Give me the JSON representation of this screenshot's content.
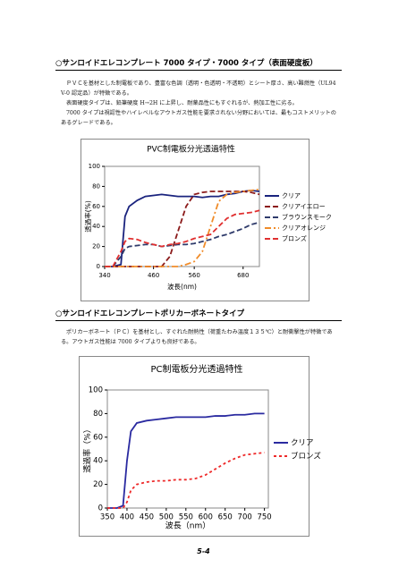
{
  "sections": [
    {
      "heading": "○サンロイドエレコンプレート 7000 タイプ・7000 タイプ（表面硬度板）",
      "paragraphs": [
        "ＰＶＣを基材とした制電板であり、豊富な色調（透明・色透明・不透明）とシート厚さ、高い難燃性（UL94 V-0 認定品）が特徴である。",
        "表面硬度タイプは、鉛筆硬度 H→2H に上昇し、耐薬品性にもすぐれるが、熱加工性に劣る。",
        "7000 タイプは視認性やハイレベルなアウトガス性能を要求されない分野においては、最もコストメリットのあるグレードである。"
      ]
    },
    {
      "heading": "○サンロイドエレコンプレートポリカーボネートタイプ",
      "paragraphs": [
        "ポリカーボネート（ＰＣ）を基材とし、すぐれた耐熱性（荷重たわみ温度１３５℃）と耐衝撃性が特徴である。アウトガス性能は 7000 タイプよりも良好である。"
      ]
    }
  ],
  "chart_data": [
    {
      "type": "line",
      "title": "PVC制電板分光透過特性",
      "x_label": "波長(nm)",
      "y_label": "透過率(%)",
      "x": [
        340,
        360,
        380,
        390,
        400,
        420,
        440,
        460,
        480,
        500,
        520,
        540,
        560,
        580,
        600,
        620,
        640,
        660,
        680,
        700,
        720
      ],
      "xlim": [
        340,
        720
      ],
      "xticks": [
        340,
        460,
        560,
        680
      ],
      "ylim": [
        0,
        100
      ],
      "yticks": [
        0,
        20,
        40,
        60,
        80,
        100
      ],
      "grid": false,
      "series": [
        {
          "name": "クリア",
          "color": "#1a237e",
          "dash": "solid",
          "values": [
            0,
            0,
            2,
            50,
            60,
            66,
            70,
            71,
            72,
            71,
            70,
            70,
            70,
            69,
            70,
            70,
            72,
            73,
            75,
            76,
            75
          ]
        },
        {
          "name": "クリアイエロー",
          "color": "#8b1a1a",
          "dash": "dashed",
          "values": [
            0,
            0,
            0,
            0,
            0,
            0,
            0,
            0,
            0,
            10,
            35,
            60,
            72,
            74,
            75,
            75,
            75,
            75,
            75,
            74,
            72
          ]
        },
        {
          "name": "ブラウンスモーク",
          "color": "#2f3b6b",
          "dash": "dashed",
          "values": [
            0,
            0,
            10,
            18,
            20,
            21,
            22,
            22,
            20,
            21,
            22,
            22,
            23,
            25,
            27,
            30,
            32,
            35,
            38,
            42,
            44
          ]
        },
        {
          "name": "クリアオレンジ",
          "color": "#f08c2a",
          "dash": "dashdot",
          "values": [
            0,
            0,
            0,
            0,
            0,
            0,
            0,
            0,
            0,
            0,
            0,
            2,
            5,
            15,
            40,
            65,
            72,
            74,
            75,
            76,
            77
          ]
        },
        {
          "name": "ブロンズ",
          "color": "#e03030",
          "dash": "dashed",
          "values": [
            0,
            0,
            15,
            25,
            28,
            27,
            24,
            22,
            20,
            22,
            23,
            25,
            28,
            30,
            32,
            40,
            48,
            52,
            53,
            54,
            56
          ]
        }
      ]
    },
    {
      "type": "line",
      "title": "PC制電板分光透過特性",
      "x_label": "波長（nm）",
      "y_label": "透過率（%）",
      "x": [
        350,
        375,
        390,
        400,
        410,
        425,
        450,
        475,
        500,
        525,
        550,
        575,
        600,
        625,
        650,
        675,
        700,
        725,
        750
      ],
      "xlim": [
        350,
        760
      ],
      "xticks": [
        350,
        400,
        450,
        500,
        550,
        600,
        650,
        700,
        750
      ],
      "ylim": [
        0,
        100
      ],
      "yticks": [
        0,
        20,
        40,
        60,
        80,
        100
      ],
      "grid": false,
      "series": [
        {
          "name": "クリア",
          "color": "#2a2aa0",
          "dash": "solid",
          "values": [
            0,
            0,
            2,
            40,
            65,
            72,
            74,
            75,
            76,
            77,
            77,
            77,
            77,
            78,
            78,
            79,
            79,
            80,
            80
          ]
        },
        {
          "name": "ブロンズ",
          "color": "#ee2a2a",
          "dash": "dotted",
          "values": [
            0,
            0,
            0,
            5,
            15,
            20,
            22,
            23,
            23,
            24,
            24,
            25,
            28,
            33,
            38,
            42,
            45,
            46,
            47
          ]
        }
      ]
    }
  ],
  "page_number": "5-4"
}
